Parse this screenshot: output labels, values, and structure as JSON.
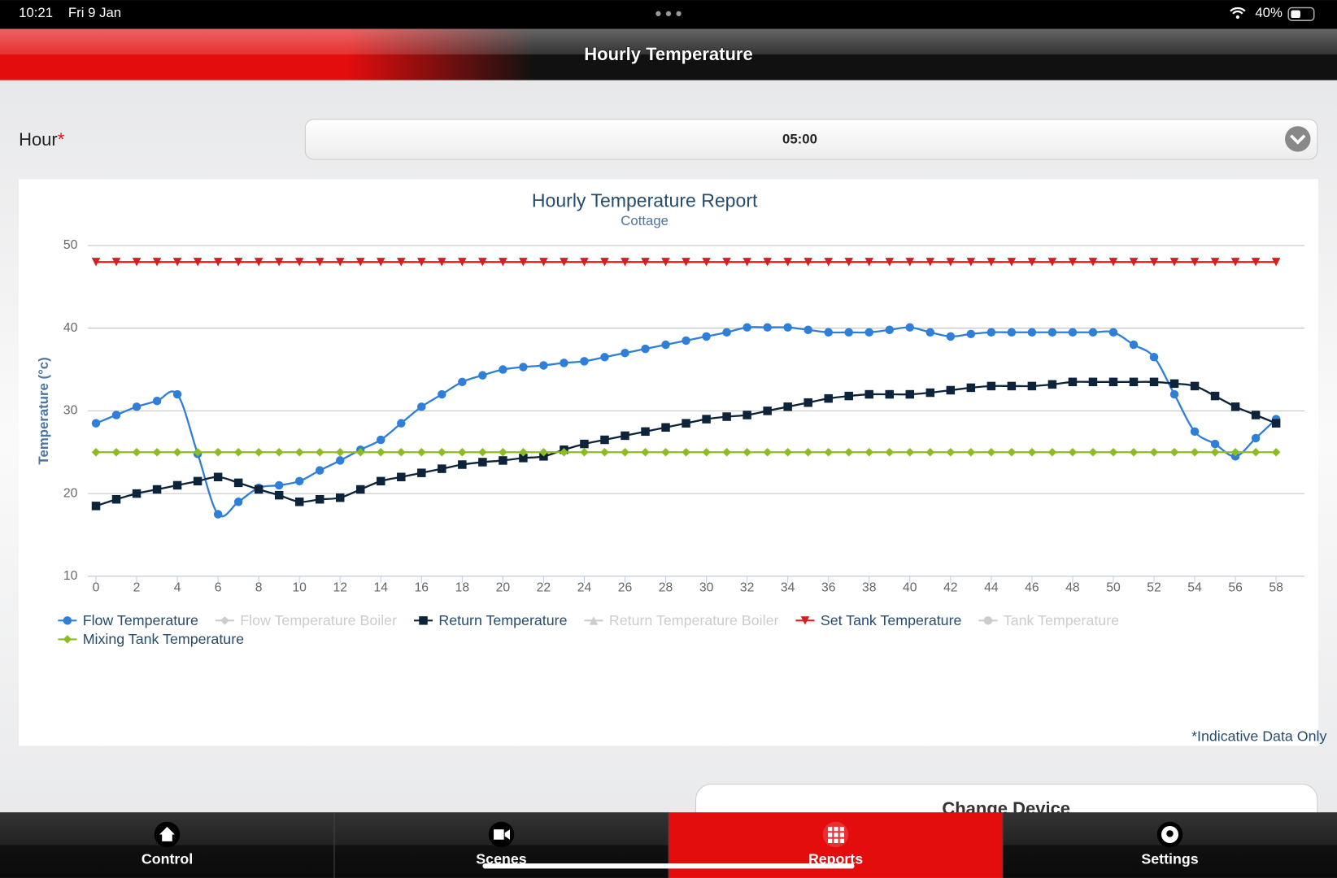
{
  "status_bar": {
    "time": "10:21",
    "date": "Fri 9 Jan",
    "battery": "40%"
  },
  "header": {
    "title": "Hourly Temperature"
  },
  "form": {
    "label": "Hour",
    "required": "*",
    "value": "05:00"
  },
  "chart_data": {
    "type": "line",
    "title": "Hourly Temperature Report",
    "subtitle": "Cottage",
    "y_label": "Temperature (°c)",
    "x": [
      0,
      1,
      2,
      3,
      4,
      5,
      6,
      7,
      8,
      9,
      10,
      11,
      12,
      13,
      14,
      15,
      16,
      17,
      18,
      19,
      20,
      21,
      22,
      23,
      24,
      25,
      26,
      27,
      28,
      29,
      30,
      31,
      32,
      33,
      34,
      35,
      36,
      37,
      38,
      39,
      40,
      41,
      42,
      43,
      44,
      45,
      46,
      47,
      48,
      49,
      50,
      51,
      52,
      53,
      54,
      55,
      56,
      57,
      58
    ],
    "xlim": [
      -0.4,
      59.4
    ],
    "xticks": [
      0,
      2,
      4,
      6,
      8,
      10,
      12,
      14,
      16,
      18,
      20,
      22,
      24,
      26,
      28,
      30,
      32,
      34,
      36,
      38,
      40,
      42,
      44,
      46,
      48,
      50,
      52,
      54,
      56,
      58
    ],
    "ylim": [
      10,
      50
    ],
    "yticks": [
      10,
      20,
      30,
      40,
      50
    ],
    "grid": true,
    "smooth": true,
    "series": [
      {
        "name": "Flow Temperature",
        "color": "#2f7ed8",
        "marker": "circle",
        "visible": true,
        "values": [
          28.5,
          29.5,
          30.5,
          31.2,
          32,
          24.8,
          17.5,
          19,
          20.7,
          21,
          21.5,
          22.8,
          24,
          25.3,
          26.5,
          28.5,
          30.5,
          32,
          33.5,
          34.3,
          35,
          35.3,
          35.5,
          35.8,
          36,
          36.5,
          37,
          37.5,
          38,
          38.5,
          39,
          39.5,
          40.1,
          40.1,
          40.1,
          39.8,
          39.5,
          39.5,
          39.5,
          39.8,
          40.1,
          39.5,
          39,
          39.3,
          39.5,
          39.5,
          39.5,
          39.5,
          39.5,
          39.5,
          39.5,
          38,
          36.5,
          32,
          27.5,
          26,
          24.5,
          26.7,
          29
        ]
      },
      {
        "name": "Flow Temperature Boiler",
        "color": "#cccccc",
        "marker": "diamond",
        "visible": false
      },
      {
        "name": "Return Temperature",
        "color": "#0d233a",
        "marker": "square",
        "visible": true,
        "values": [
          18.5,
          19.3,
          20,
          20.5,
          21,
          21.5,
          22,
          21.3,
          20.5,
          19.8,
          19,
          19.3,
          19.5,
          20.5,
          21.5,
          22,
          22.5,
          23,
          23.5,
          23.8,
          24,
          24.3,
          24.5,
          25.3,
          26,
          26.5,
          27,
          27.5,
          28,
          28.5,
          29,
          29.3,
          29.5,
          30,
          30.5,
          31,
          31.5,
          31.8,
          32,
          32,
          32,
          32.2,
          32.5,
          32.8,
          33,
          33,
          33,
          33.2,
          33.5,
          33.5,
          33.5,
          33.5,
          33.5,
          33.3,
          33,
          31.8,
          30.5,
          29.5,
          28.5
        ]
      },
      {
        "name": "Return Temperature Boiler",
        "color": "#cccccc",
        "marker": "triangle",
        "visible": false
      },
      {
        "name": "Set Tank Temperature",
        "color": "#d41f1f",
        "marker": "triangle-down",
        "visible": true,
        "values": [
          48,
          48,
          48,
          48,
          48,
          48,
          48,
          48,
          48,
          48,
          48,
          48,
          48,
          48,
          48,
          48,
          48,
          48,
          48,
          48,
          48,
          48,
          48,
          48,
          48,
          48,
          48,
          48,
          48,
          48,
          48,
          48,
          48,
          48,
          48,
          48,
          48,
          48,
          48,
          48,
          48,
          48,
          48,
          48,
          48,
          48,
          48,
          48,
          48,
          48,
          48,
          48,
          48,
          48,
          48,
          48,
          48,
          48,
          48
        ]
      },
      {
        "name": "Tank Temperature",
        "color": "#cccccc",
        "marker": "circle",
        "visible": false
      },
      {
        "name": "Mixing Tank Temperature",
        "color": "#8bbc21",
        "marker": "diamond",
        "visible": true,
        "values": [
          25,
          25,
          25,
          25,
          25,
          25,
          25,
          25,
          25,
          25,
          25,
          25,
          25,
          25,
          25,
          25,
          25,
          25,
          25,
          25,
          25,
          25,
          25,
          25,
          25,
          25,
          25,
          25,
          25,
          25,
          25,
          25,
          25,
          25,
          25,
          25,
          25,
          25,
          25,
          25,
          25,
          25,
          25,
          25,
          25,
          25,
          25,
          25,
          25,
          25,
          25,
          25,
          25,
          25,
          25,
          25,
          25,
          25,
          25
        ]
      }
    ]
  },
  "note": "*Indicative Data Only",
  "button": "Change Device",
  "tabs": [
    "Control",
    "Scenes",
    "Reports",
    "Settings"
  ],
  "active_tab": 2
}
